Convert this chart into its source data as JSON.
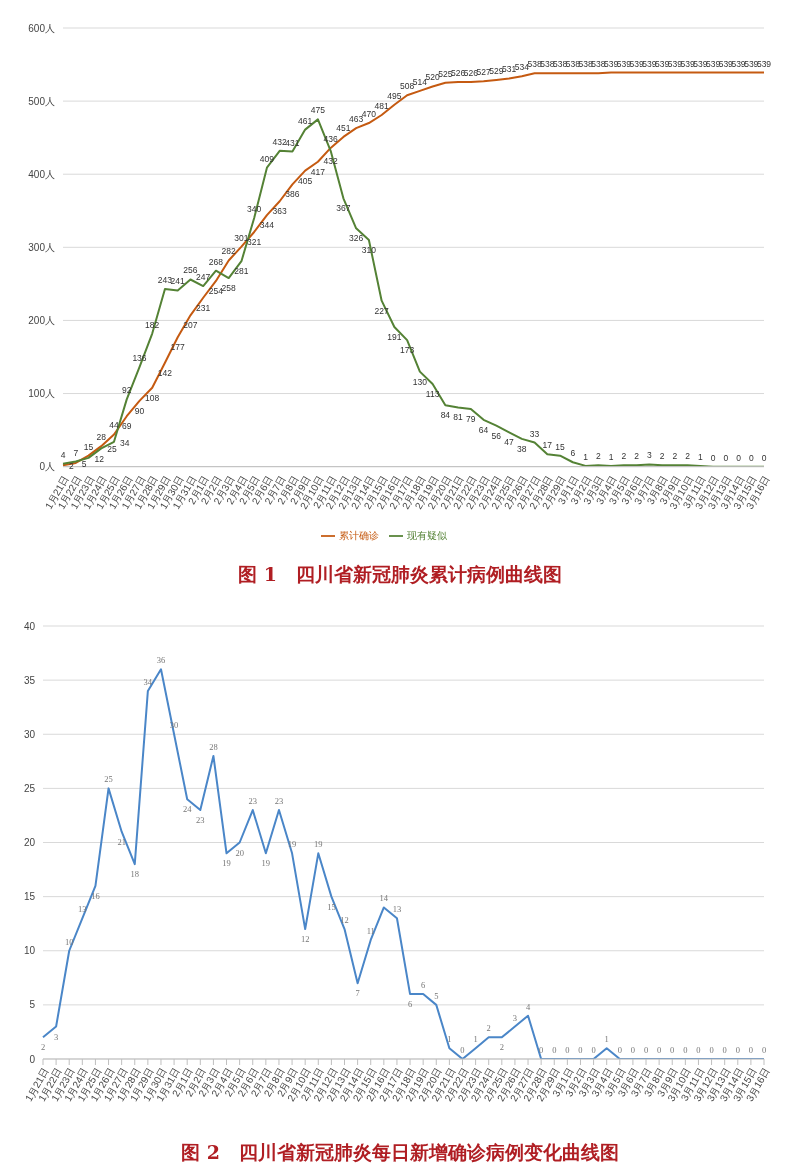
{
  "chart_data": [
    {
      "type": "line",
      "title": "图 1　四川省新冠肺炎累计病例曲线图",
      "categories": [
        "1月21日",
        "1月22日",
        "1月23日",
        "1月24日",
        "1月25日",
        "1月26日",
        "1月27日",
        "1月28日",
        "1月29日",
        "1月30日",
        "1月31日",
        "2月1日",
        "2月2日",
        "2月3日",
        "2月4日",
        "2月5日",
        "2月6日",
        "2月7日",
        "2月8日",
        "2月9日",
        "2月10日",
        "2月11日",
        "2月12日",
        "2月13日",
        "2月14日",
        "2月15日",
        "2月16日",
        "2月17日",
        "2月18日",
        "2月19日",
        "2月20日",
        "2月21日",
        "2月22日",
        "2月23日",
        "2月24日",
        "2月25日",
        "2月26日",
        "2月27日",
        "2月28日",
        "2月29日",
        "3月1日",
        "3月2日",
        "3月3日",
        "3月4日",
        "3月5日",
        "3月6日",
        "3月7日",
        "3月8日",
        "3月9日",
        "3月10日",
        "3月11日",
        "3月12日",
        "3月13日",
        "3月14日",
        "3月15日",
        "3月16日"
      ],
      "series": [
        {
          "name": "累计确诊",
          "color": "#c55a11",
          "values": [
            2,
            5,
            15,
            28,
            44,
            69,
            90,
            108,
            142,
            177,
            207,
            231,
            254,
            282,
            301,
            321,
            344,
            363,
            386,
            405,
            417,
            436,
            451,
            463,
            470,
            481,
            495,
            508,
            514,
            520,
            525,
            526,
            526,
            527,
            529,
            531,
            534,
            538,
            538,
            538,
            538,
            538,
            538,
            539,
            539,
            539,
            539,
            539,
            539,
            539,
            539,
            539,
            539,
            539,
            539,
            539
          ]
        },
        {
          "name": "现有疑似",
          "color": "#548235",
          "values": [
            4,
            7,
            12,
            25,
            34,
            92,
            136,
            182,
            243,
            241,
            256,
            247,
            268,
            258,
            281,
            340,
            409,
            432,
            431,
            461,
            475,
            432,
            367,
            326,
            310,
            227,
            191,
            173,
            130,
            113,
            84,
            81,
            79,
            64,
            56,
            47,
            38,
            33,
            17,
            15,
            6,
            1,
            2,
            1,
            2,
            2,
            3,
            2,
            2,
            2,
            1,
            0,
            0,
            0,
            0,
            0
          ]
        }
      ],
      "ylim": [
        0,
        600
      ],
      "yticks": [
        {
          "value": 0,
          "label": "0人"
        },
        {
          "value": 100,
          "label": "100人"
        },
        {
          "value": 200,
          "label": "200人"
        },
        {
          "value": 300,
          "label": "300人"
        },
        {
          "value": 400,
          "label": "400人"
        },
        {
          "value": 500,
          "label": "500人"
        },
        {
          "value": 600,
          "label": "600人"
        }
      ],
      "grid": "y",
      "legend": "bottom",
      "marker": "none",
      "line_style": "solid",
      "data_labels": true
    },
    {
      "type": "line",
      "title": "图 2　四川省新冠肺炎每日新增确诊病例变化曲线图",
      "categories": [
        "1月21日",
        "1月22日",
        "1月23日",
        "1月24日",
        "1月25日",
        "1月26日",
        "1月27日",
        "1月28日",
        "1月29日",
        "1月30日",
        "1月31日",
        "2月1日",
        "2月2日",
        "2月3日",
        "2月4日",
        "2月5日",
        "2月6日",
        "2月7日",
        "2月8日",
        "2月9日",
        "2月10日",
        "2月11日",
        "2月12日",
        "2月13日",
        "2月14日",
        "2月15日",
        "2月16日",
        "2月17日",
        "2月18日",
        "2月19日",
        "2月20日",
        "2月21日",
        "2月22日",
        "2月23日",
        "2月24日",
        "2月25日",
        "2月26日",
        "2月27日",
        "2月28日",
        "2月29日",
        "3月1日",
        "3月2日",
        "3月3日",
        "3月4日",
        "3月5日",
        "3月6日",
        "3月7日",
        "3月8日",
        "3月9日",
        "3月10日",
        "3月11日",
        "3月12日",
        "3月13日",
        "3月14日",
        "3月15日",
        "3月16日"
      ],
      "series": [
        {
          "color": "#4a86c8",
          "values": [
            2,
            3,
            10,
            13,
            16,
            25,
            21,
            18,
            34,
            36,
            30,
            24,
            23,
            28,
            19,
            20,
            23,
            19,
            23,
            19,
            12,
            19,
            15,
            12,
            7,
            11,
            14,
            13,
            6,
            6,
            5,
            1,
            0,
            1,
            2,
            2,
            3,
            4,
            0,
            0,
            0,
            0,
            0,
            1,
            0,
            0,
            0,
            0,
            0,
            0,
            0,
            0,
            0,
            0,
            0,
            0
          ]
        }
      ],
      "ylim": [
        0,
        40
      ],
      "yticks": [
        0,
        5,
        10,
        15,
        20,
        25,
        30,
        35,
        40
      ],
      "grid": "y",
      "legend": false,
      "marker": "none",
      "line_style": "solid",
      "data_labels": true
    }
  ]
}
